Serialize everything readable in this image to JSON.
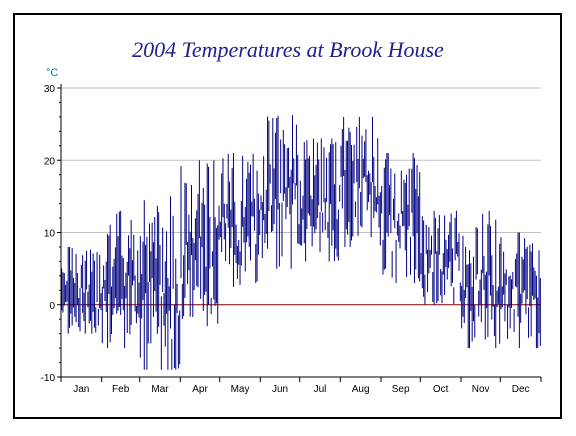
{
  "chart_data": {
    "type": "line",
    "title": "2004 Temperatures at Brook House",
    "ylabel": "°C",
    "xlabel": "",
    "ylim": [
      -10,
      30
    ],
    "yticks": [
      -10,
      0,
      10,
      20,
      30
    ],
    "grid": true,
    "months": [
      "Jan",
      "Feb",
      "Mar",
      "Apr",
      "May",
      "Jun",
      "Jul",
      "Aug",
      "Sep",
      "Oct",
      "Nov",
      "Dec"
    ],
    "series": [
      {
        "note": "daily min/max range bars",
        "monthly_profile": [
          {
            "month": "Jan",
            "min": -4,
            "max": 8
          },
          {
            "month": "Feb",
            "min": -6,
            "max": 13
          },
          {
            "month": "Mar",
            "min": -9,
            "max": 15
          },
          {
            "month": "Apr",
            "min": -3,
            "max": 20
          },
          {
            "month": "May",
            "min": 2,
            "max": 21
          },
          {
            "month": "Jun",
            "min": 5,
            "max": 27
          },
          {
            "month": "Jul",
            "min": 6,
            "max": 23
          },
          {
            "month": "Aug",
            "min": 8,
            "max": 26
          },
          {
            "month": "Sep",
            "min": 3,
            "max": 21
          },
          {
            "month": "Oct",
            "min": 0,
            "max": 13
          },
          {
            "month": "Nov",
            "min": -6,
            "max": 13
          },
          {
            "month": "Dec",
            "min": -6,
            "max": 10
          }
        ]
      }
    ],
    "colors": {
      "bars": "#000080",
      "title": "#1f1f8f",
      "unit": "#008b8b",
      "grid": "#c0c0c0",
      "zero_line": "#800000"
    }
  }
}
